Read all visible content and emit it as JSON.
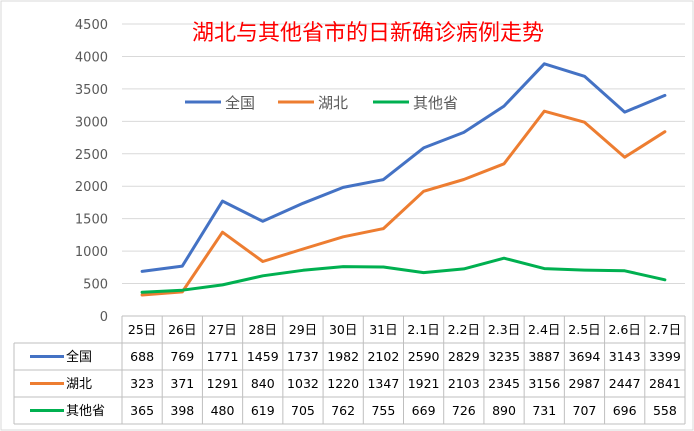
{
  "chart_data": {
    "type": "line",
    "title": "湖北与其他省市的日新确诊病例走势",
    "categories": [
      "25日",
      "26日",
      "27日",
      "28日",
      "29日",
      "30日",
      "31日",
      "2.1日",
      "2.2日",
      "2.3日",
      "2.4日",
      "2.5日",
      "2.6日",
      "2.7日"
    ],
    "ylim": [
      0,
      4500
    ],
    "yticks": [
      "0",
      "500",
      "1000",
      "1500",
      "2000",
      "2500",
      "3000",
      "3500",
      "4000",
      "4500"
    ],
    "grid": true,
    "legend_position": "top-center",
    "data_table": true,
    "series": [
      {
        "name": "全国",
        "color": "#4472C4",
        "values": [
          688,
          769,
          1771,
          1459,
          1737,
          1982,
          2102,
          2590,
          2829,
          3235,
          3887,
          3694,
          3143,
          3399
        ]
      },
      {
        "name": "湖北",
        "color": "#ED7D31",
        "values": [
          323,
          371,
          1291,
          840,
          1032,
          1220,
          1347,
          1921,
          2103,
          2345,
          3156,
          2987,
          2447,
          2841
        ]
      },
      {
        "name": "其他省",
        "color": "#00B050",
        "values": [
          365,
          398,
          480,
          619,
          705,
          762,
          755,
          669,
          726,
          890,
          731,
          707,
          696,
          558
        ]
      }
    ]
  },
  "colors": {
    "title": "#FF0000",
    "grid": "#D9D9D9",
    "text": "#595959",
    "table_text": "#000000"
  }
}
